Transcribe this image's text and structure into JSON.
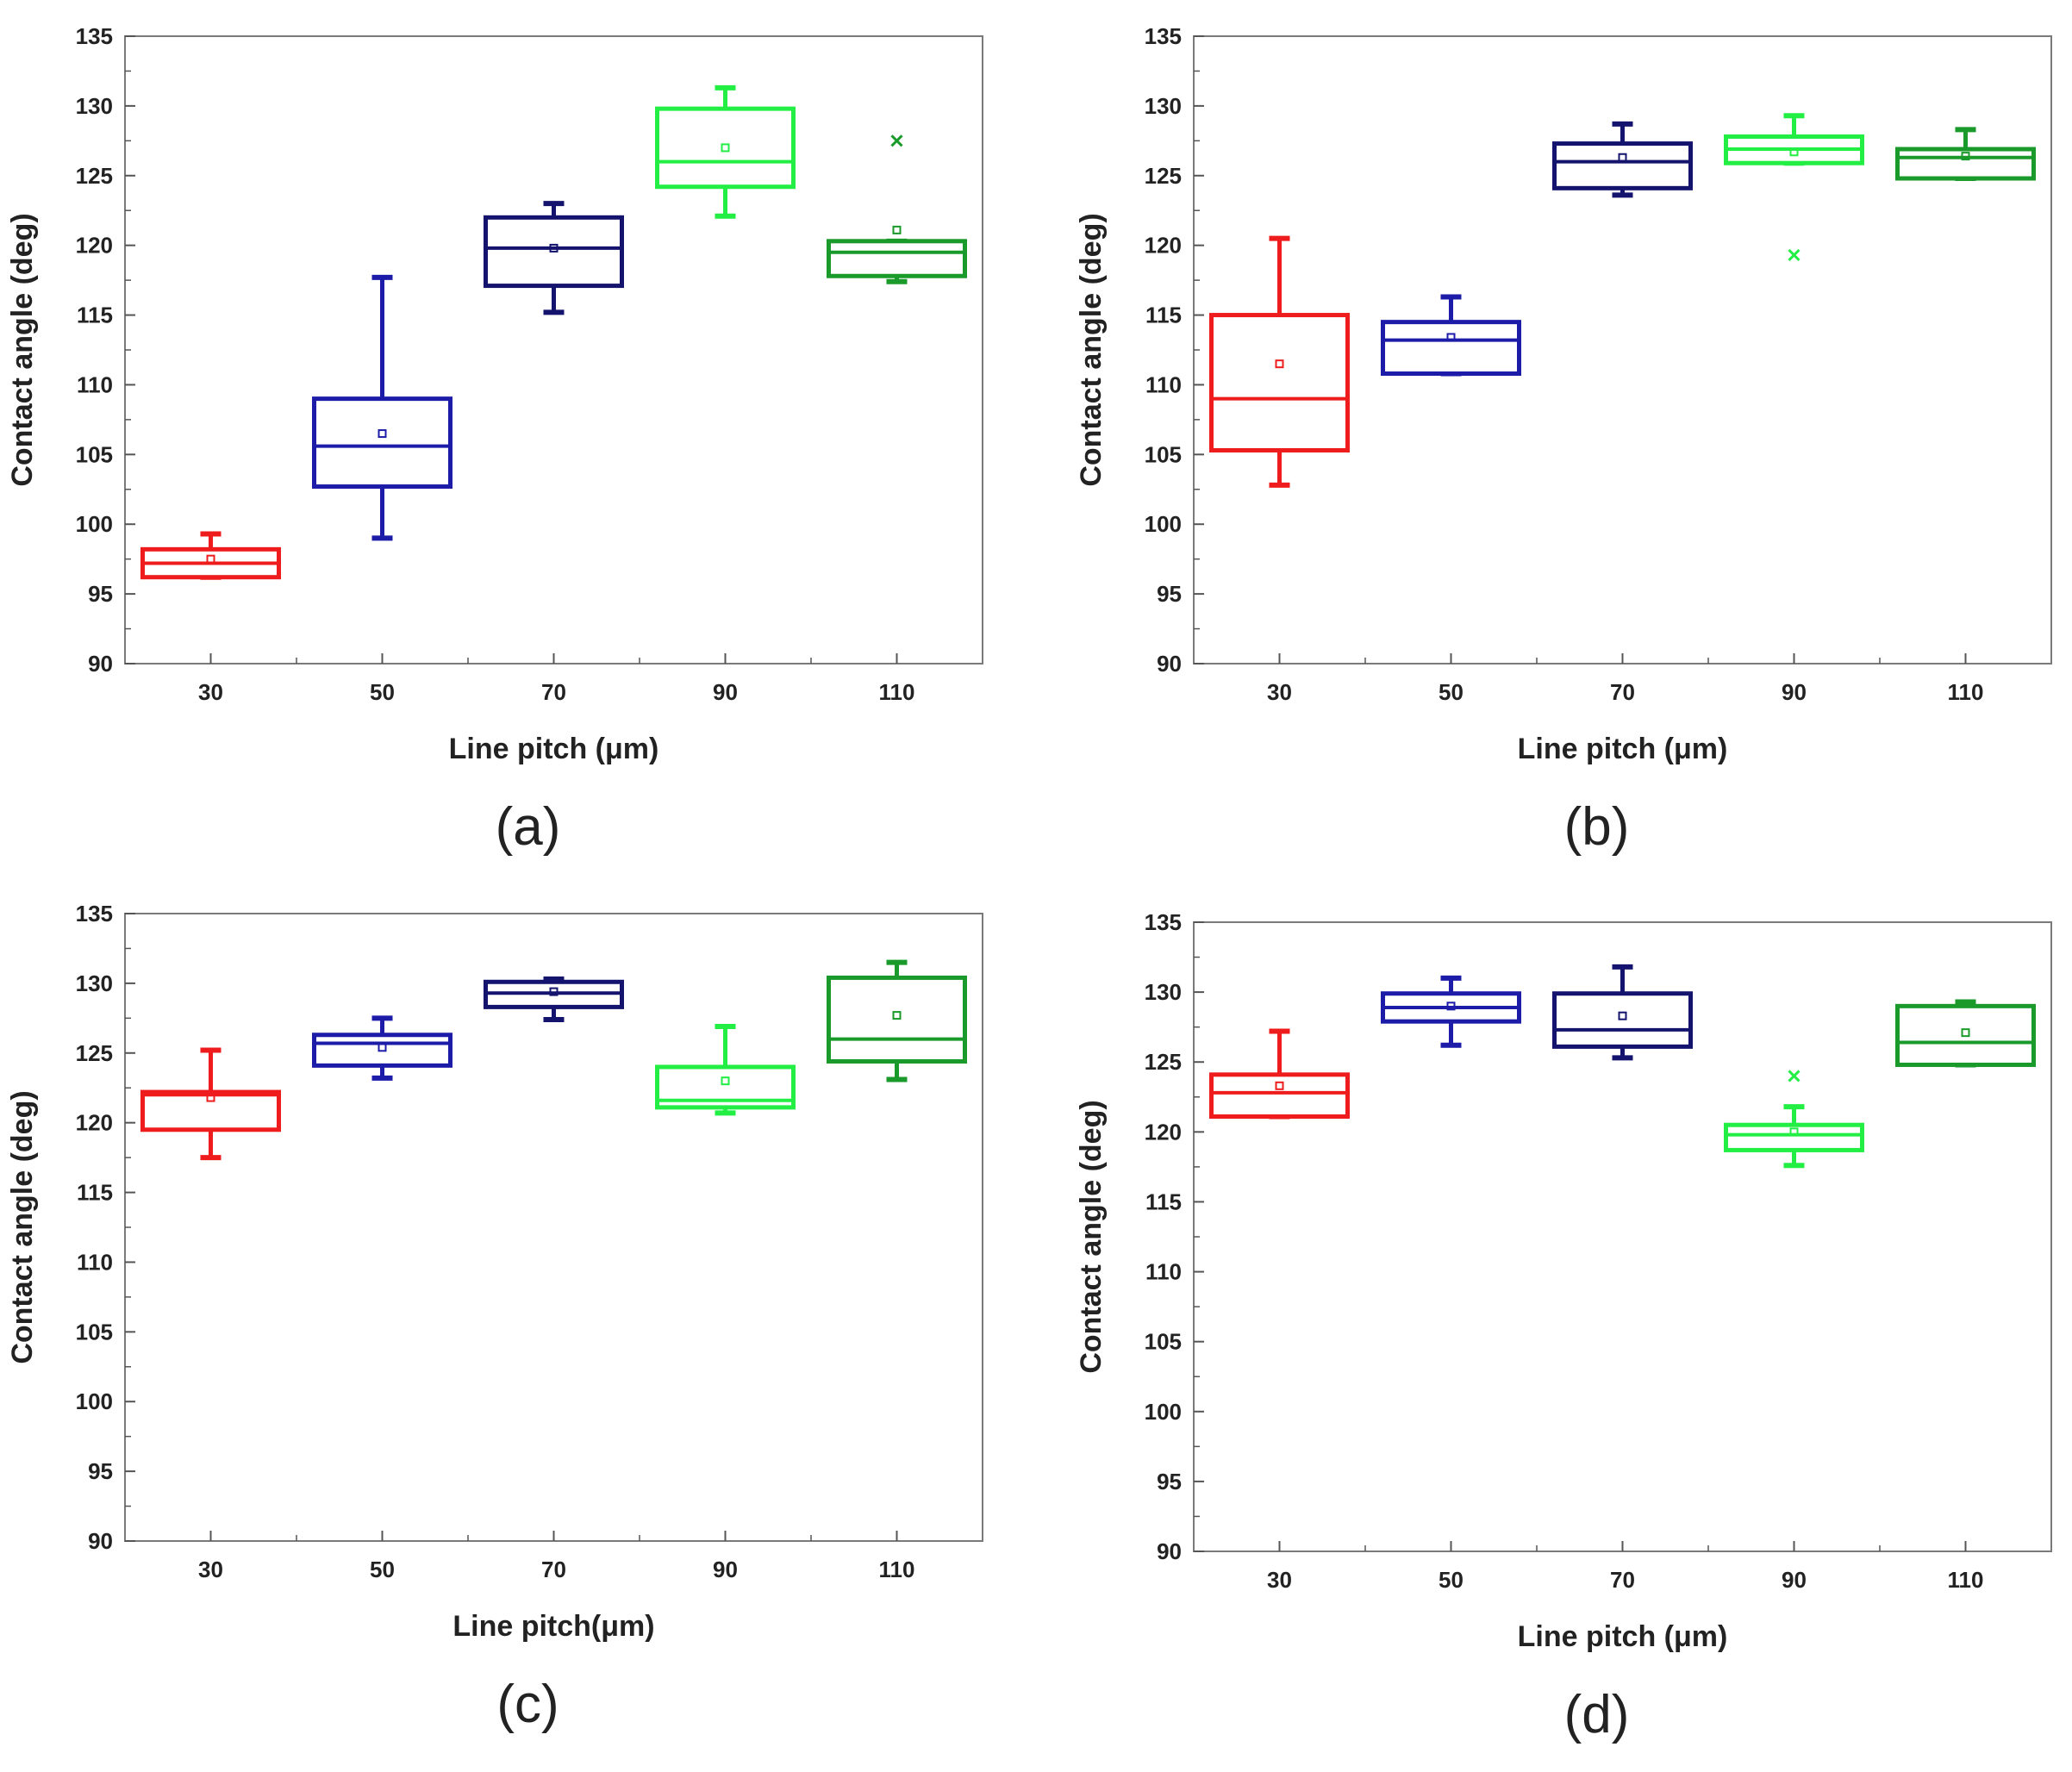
{
  "chart_data": [
    {
      "panel_label": "(a)",
      "type": "box",
      "xlabel": "Line pitch (μm)",
      "ylabel": "Contact angle (deg)",
      "ylim": [
        90,
        135
      ],
      "yticks": [
        "90",
        "95",
        "100",
        "105",
        "110",
        "115",
        "120",
        "125",
        "130",
        "135"
      ],
      "categories": [
        "30",
        "50",
        "70",
        "90",
        "110"
      ],
      "boxes": [
        {
          "category": "30",
          "color": "#ee1c1c",
          "whisker_low": 96.2,
          "q1": 96.2,
          "median": 97.2,
          "q3": 98.2,
          "whisker_high": 99.3,
          "mean": 97.5,
          "outliers": []
        },
        {
          "category": "50",
          "color": "#1c1ca8",
          "whisker_low": 99.0,
          "q1": 102.7,
          "median": 105.6,
          "q3": 109.0,
          "whisker_high": 117.7,
          "mean": 106.5,
          "outliers": []
        },
        {
          "category": "70",
          "color": "#14146e",
          "whisker_low": 115.2,
          "q1": 117.1,
          "median": 119.8,
          "q3": 122.0,
          "whisker_high": 123.0,
          "mean": 119.8,
          "outliers": []
        },
        {
          "category": "90",
          "color": "#22ee44",
          "whisker_low": 122.1,
          "q1": 124.2,
          "median": 126.0,
          "q3": 129.8,
          "whisker_high": 131.3,
          "mean": 127.0,
          "outliers": []
        },
        {
          "category": "110",
          "color": "#1a9a2a",
          "whisker_low": 117.4,
          "q1": 117.8,
          "median": 119.5,
          "q3": 120.3,
          "whisker_high": 120.3,
          "mean": 121.1,
          "outliers": [
            127.5
          ]
        }
      ]
    },
    {
      "panel_label": "(b)",
      "type": "box",
      "xlabel": "Line pitch (μm)",
      "ylabel": "Contact angle (deg)",
      "ylim": [
        90,
        135
      ],
      "yticks": [
        "90",
        "95",
        "100",
        "105",
        "110",
        "115",
        "120",
        "125",
        "130",
        "135"
      ],
      "categories": [
        "30",
        "50",
        "70",
        "90",
        "110"
      ],
      "boxes": [
        {
          "category": "30",
          "color": "#ee1c1c",
          "whisker_low": 102.8,
          "q1": 105.3,
          "median": 109.0,
          "q3": 115.0,
          "whisker_high": 120.5,
          "mean": 111.5,
          "outliers": []
        },
        {
          "category": "50",
          "color": "#1c1ca8",
          "whisker_low": 110.8,
          "q1": 110.8,
          "median": 113.2,
          "q3": 114.5,
          "whisker_high": 116.3,
          "mean": 113.4,
          "outliers": []
        },
        {
          "category": "70",
          "color": "#14146e",
          "whisker_low": 123.6,
          "q1": 124.1,
          "median": 126.0,
          "q3": 127.3,
          "whisker_high": 128.7,
          "mean": 126.3,
          "outliers": []
        },
        {
          "category": "90",
          "color": "#22ee44",
          "whisker_low": 125.9,
          "q1": 125.9,
          "median": 126.9,
          "q3": 127.8,
          "whisker_high": 129.3,
          "mean": 126.7,
          "outliers": [
            119.3
          ]
        },
        {
          "category": "110",
          "color": "#1a9a2a",
          "whisker_low": 124.8,
          "q1": 124.8,
          "median": 126.3,
          "q3": 126.9,
          "whisker_high": 128.3,
          "mean": 126.4,
          "outliers": []
        }
      ]
    },
    {
      "panel_label": "(c)",
      "type": "box",
      "xlabel": "Line pitch(μm)",
      "ylabel": "Contact angle (deg)",
      "ylim": [
        90,
        135
      ],
      "yticks": [
        "90",
        "95",
        "100",
        "105",
        "110",
        "115",
        "120",
        "125",
        "130",
        "135"
      ],
      "categories": [
        "30",
        "50",
        "70",
        "90",
        "110"
      ],
      "boxes": [
        {
          "category": "30",
          "color": "#ee1c1c",
          "whisker_low": 117.5,
          "q1": 119.5,
          "median": 122.0,
          "q3": 122.2,
          "whisker_high": 125.2,
          "mean": 121.8,
          "outliers": []
        },
        {
          "category": "50",
          "color": "#1c1ca8",
          "whisker_low": 123.2,
          "q1": 124.1,
          "median": 125.7,
          "q3": 126.3,
          "whisker_high": 127.5,
          "mean": 125.4,
          "outliers": []
        },
        {
          "category": "70",
          "color": "#14146e",
          "whisker_low": 127.4,
          "q1": 128.3,
          "median": 129.3,
          "q3": 130.1,
          "whisker_high": 130.3,
          "mean": 129.4,
          "outliers": []
        },
        {
          "category": "90",
          "color": "#22ee44",
          "whisker_low": 120.7,
          "q1": 121.1,
          "median": 121.6,
          "q3": 124.0,
          "whisker_high": 126.9,
          "mean": 123.0,
          "outliers": []
        },
        {
          "category": "110",
          "color": "#1a9a2a",
          "whisker_low": 123.1,
          "q1": 124.4,
          "median": 126.0,
          "q3": 130.4,
          "whisker_high": 131.5,
          "mean": 127.7,
          "outliers": []
        }
      ]
    },
    {
      "panel_label": "(d)",
      "type": "box",
      "xlabel": "Line pitch (μm)",
      "ylabel": "Contact angle (deg)",
      "ylim": [
        90,
        135
      ],
      "yticks": [
        "90",
        "95",
        "100",
        "105",
        "110",
        "115",
        "120",
        "125",
        "130",
        "135"
      ],
      "categories": [
        "30",
        "50",
        "70",
        "90",
        "110"
      ],
      "boxes": [
        {
          "category": "30",
          "color": "#ee1c1c",
          "whisker_low": 121.1,
          "q1": 121.1,
          "median": 122.8,
          "q3": 124.1,
          "whisker_high": 127.2,
          "mean": 123.3,
          "outliers": []
        },
        {
          "category": "50",
          "color": "#1c1ca8",
          "whisker_low": 126.2,
          "q1": 127.9,
          "median": 128.9,
          "q3": 129.9,
          "whisker_high": 131.0,
          "mean": 129.0,
          "outliers": []
        },
        {
          "category": "70",
          "color": "#14146e",
          "whisker_low": 125.3,
          "q1": 126.1,
          "median": 127.3,
          "q3": 129.9,
          "whisker_high": 131.8,
          "mean": 128.3,
          "outliers": []
        },
        {
          "category": "90",
          "color": "#22ee44",
          "whisker_low": 117.6,
          "q1": 118.7,
          "median": 119.8,
          "q3": 120.5,
          "whisker_high": 121.8,
          "mean": 120.0,
          "outliers": [
            124.0
          ]
        },
        {
          "category": "110",
          "color": "#1a9a2a",
          "whisker_low": 124.8,
          "q1": 124.8,
          "median": 126.4,
          "q3": 129.0,
          "whisker_high": 129.3,
          "mean": 127.1,
          "outliers": []
        }
      ]
    }
  ]
}
